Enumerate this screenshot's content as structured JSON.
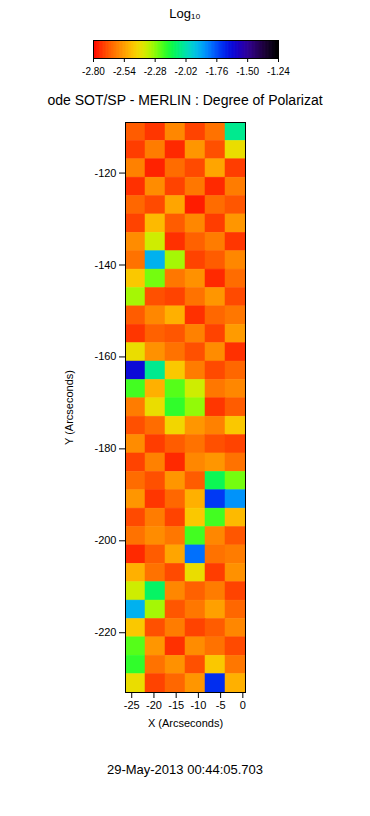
{
  "chart_data": {
    "type": "heatmap",
    "title": "ode SOT/SP - MERLIN : Degree of Polarizat",
    "xlabel": "X (Arcseconds)",
    "ylabel": "Y (Arcseconds)",
    "caption": "29-May-2013 00:44:05.703",
    "xlim": [
      -26.4,
      0.6
    ],
    "ylim": [
      -233,
      -109
    ],
    "xticks": [
      -25,
      -20,
      -15,
      -10,
      -5,
      0
    ],
    "yticks": [
      -220,
      -200,
      -180,
      -160,
      -140,
      -120
    ],
    "cells": {
      "x_edges": [
        -26.4,
        -21.9,
        -17.4,
        -12.9,
        -8.4,
        -3.9,
        0.6
      ],
      "y_edges": [
        -109,
        -113,
        -117,
        -121,
        -125,
        -129,
        -133,
        -137,
        -141,
        -145,
        -149,
        -153,
        -157,
        -161,
        -165,
        -169,
        -173,
        -177,
        -181,
        -185,
        -189,
        -193,
        -197,
        -201,
        -205,
        -209,
        -213,
        -217,
        -221,
        -225,
        -229,
        -233
      ],
      "values": [
        [
          -2.66,
          -2.72,
          -2.58,
          -2.7,
          -2.62,
          -2.05
        ],
        [
          -2.71,
          -2.6,
          -2.74,
          -2.55,
          -2.68,
          -2.4
        ],
        [
          -2.59,
          -2.75,
          -2.63,
          -2.69,
          -2.52,
          -2.71
        ],
        [
          -2.73,
          -2.57,
          -2.7,
          -2.61,
          -2.74,
          -2.6
        ],
        [
          -2.64,
          -2.69,
          -2.52,
          -2.76,
          -2.63,
          -2.67
        ],
        [
          -2.7,
          -2.48,
          -2.66,
          -2.58,
          -2.71,
          -2.55
        ],
        [
          -2.57,
          -2.35,
          -2.73,
          -2.65,
          -2.6,
          -2.72
        ],
        [
          -2.62,
          -1.9,
          -2.3,
          -2.7,
          -2.66,
          -2.58
        ],
        [
          -2.45,
          -2.25,
          -2.61,
          -2.56,
          -2.74,
          -2.63
        ],
        [
          -2.3,
          -2.68,
          -2.7,
          -2.62,
          -2.55,
          -2.69
        ],
        [
          -2.66,
          -2.58,
          -2.5,
          -2.73,
          -2.64,
          -2.61
        ],
        [
          -2.72,
          -2.65,
          -2.67,
          -2.59,
          -2.7,
          -2.54
        ],
        [
          -2.4,
          -2.56,
          -2.62,
          -2.68,
          -2.57,
          -2.73
        ],
        [
          -1.62,
          -2.05,
          -2.45,
          -2.6,
          -2.69,
          -2.64
        ],
        [
          -2.2,
          -2.5,
          -2.22,
          -2.35,
          -2.61,
          -2.58
        ],
        [
          -2.6,
          -2.4,
          -2.18,
          -2.28,
          -2.72,
          -2.66
        ],
        [
          -2.68,
          -2.63,
          -2.42,
          -2.55,
          -2.59,
          -2.45
        ],
        [
          -2.57,
          -2.71,
          -2.66,
          -2.62,
          -2.68,
          -2.7
        ],
        [
          -2.7,
          -2.59,
          -2.74,
          -2.58,
          -2.55,
          -2.62
        ],
        [
          -2.63,
          -2.68,
          -2.55,
          -2.66,
          -2.12,
          -2.25
        ],
        [
          -2.55,
          -2.72,
          -2.64,
          -2.5,
          -1.72,
          -1.85
        ],
        [
          -2.69,
          -2.6,
          -2.7,
          -2.45,
          -2.2,
          -2.48
        ],
        [
          -2.62,
          -2.57,
          -2.61,
          -2.2,
          -2.58,
          -2.67
        ],
        [
          -2.74,
          -2.66,
          -2.52,
          -1.8,
          -2.62,
          -2.6
        ],
        [
          -2.5,
          -2.62,
          -2.69,
          -2.4,
          -2.71,
          -2.56
        ],
        [
          -2.35,
          -2.1,
          -2.58,
          -2.65,
          -2.6,
          -2.7
        ],
        [
          -1.9,
          -2.3,
          -2.67,
          -2.61,
          -2.53,
          -2.64
        ],
        [
          -2.45,
          -2.68,
          -2.6,
          -2.7,
          -2.66,
          -2.58
        ],
        [
          -2.22,
          -2.55,
          -2.73,
          -2.57,
          -2.62,
          -2.69
        ],
        [
          -2.18,
          -2.62,
          -2.56,
          -2.68,
          -2.45,
          -2.61
        ],
        [
          -2.4,
          -2.7,
          -2.64,
          -2.55,
          -1.7,
          -2.5
        ]
      ]
    },
    "colorbar": {
      "label": "Log₁₀",
      "range": [
        -2.8,
        -1.24
      ],
      "ticks": [
        {
          "value": -2.8,
          "label": "-2.80"
        },
        {
          "value": -2.54,
          "label": "-2.54"
        },
        {
          "value": -2.28,
          "label": "-2.28"
        },
        {
          "value": -2.02,
          "label": "-2.02"
        },
        {
          "value": -1.76,
          "label": "-1.76"
        },
        {
          "value": -1.5,
          "label": "-1.50"
        },
        {
          "value": -1.24,
          "label": "-1.24"
        }
      ]
    }
  }
}
